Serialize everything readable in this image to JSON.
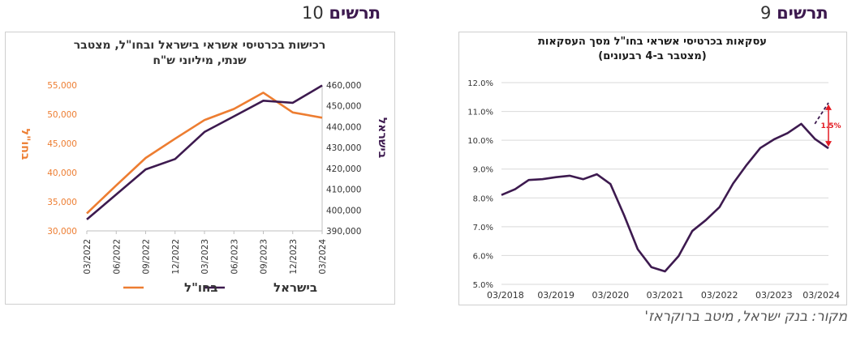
{
  "figure10": {
    "label_word": "תרשים",
    "label_num": "10",
    "chart_data": {
      "type": "line",
      "title_line1": "רכישות בכרטיסי אשראי בישראל ובחו\"ל, מצטבר",
      "title_line2": "שנתי, מיליוני ש\"ח",
      "categories": [
        "03/2022",
        "06/2022",
        "09/2022",
        "12/2022",
        "03/2023",
        "06/2023",
        "09/2023",
        "12/2023",
        "03/2024"
      ],
      "left_axis": {
        "label": "בחו\"ל",
        "color": "#ed7d31",
        "ylim": [
          30000,
          55000
        ],
        "ticks": [
          "30,000",
          "35,000",
          "40,000",
          "45,000",
          "50,000",
          "55,000"
        ],
        "tick_values": [
          30000,
          35000,
          40000,
          45000,
          50000,
          55000
        ]
      },
      "right_axis": {
        "label": "בישראל",
        "color": "#3d1a4f",
        "ylim": [
          390000,
          460000
        ],
        "ticks": [
          "390,000",
          "400,000",
          "410,000",
          "420,000",
          "430,000",
          "440,000",
          "450,000",
          "460,000"
        ],
        "tick_values": [
          390000,
          400000,
          410000,
          420000,
          430000,
          440000,
          450000,
          460000
        ]
      },
      "series": [
        {
          "name": "בחו\"ל",
          "axis": "left",
          "color": "#ed7d31",
          "values": [
            33000,
            37800,
            42500,
            45800,
            49000,
            50900,
            53700,
            50300,
            49400
          ]
        },
        {
          "name": "בישראל",
          "axis": "right",
          "color": "#3d1a4f",
          "values": [
            395500,
            407500,
            419500,
            424500,
            437500,
            445000,
            452500,
            451500,
            459800
          ]
        }
      ],
      "legend_position": "bottom",
      "grid": false
    }
  },
  "figure9": {
    "label_word": "תרשים",
    "label_num": "9",
    "chart_data": {
      "type": "line",
      "title_line1": "עסקאות בכרטיסי אשראי בחו\"ל מסך העסקאות",
      "title_line2": "(מצטבר ב-4 רבעונים)",
      "x_ticks": [
        "03/2018",
        "03/2019",
        "03/2020",
        "03/2021",
        "03/2022",
        "03/2023",
        "03/2024"
      ],
      "y_ticks": [
        "5.0%",
        "6.0%",
        "7.0%",
        "8.0%",
        "9.0%",
        "10.0%",
        "11.0%",
        "12.0%"
      ],
      "y_tick_values": [
        5,
        6,
        7,
        8,
        9,
        10,
        11,
        12
      ],
      "ylim": [
        5,
        12
      ],
      "grid": true,
      "series": [
        {
          "name": "",
          "color": "#3d1a4f",
          "x": [
            "03/2018",
            "06/2018",
            "09/2018",
            "12/2018",
            "03/2019",
            "06/2019",
            "09/2019",
            "12/2019",
            "03/2020",
            "06/2020",
            "09/2020",
            "12/2020",
            "03/2021",
            "06/2021",
            "09/2021",
            "12/2021",
            "03/2022",
            "06/2022",
            "09/2022",
            "12/2022",
            "03/2023",
            "06/2023",
            "09/2023",
            "12/2023",
            "03/2024"
          ],
          "values": [
            8.1,
            8.3,
            8.62,
            8.65,
            8.72,
            8.77,
            8.65,
            8.82,
            8.48,
            7.4,
            6.22,
            5.6,
            5.45,
            5.98,
            6.85,
            7.23,
            7.68,
            8.5,
            9.15,
            9.73,
            10.03,
            10.25,
            10.57,
            10.05,
            9.72
          ]
        }
      ],
      "projection": {
        "color": "#3d1a4f",
        "style": "dashed",
        "x": [
          "12/2023",
          "03/2024"
        ],
        "values": [
          10.57,
          11.3
        ]
      },
      "annotation": {
        "text": "1.5%",
        "color": "#e31b23"
      }
    }
  },
  "source": "מקור: בנק ישראל, מיטב ברוקראז'"
}
